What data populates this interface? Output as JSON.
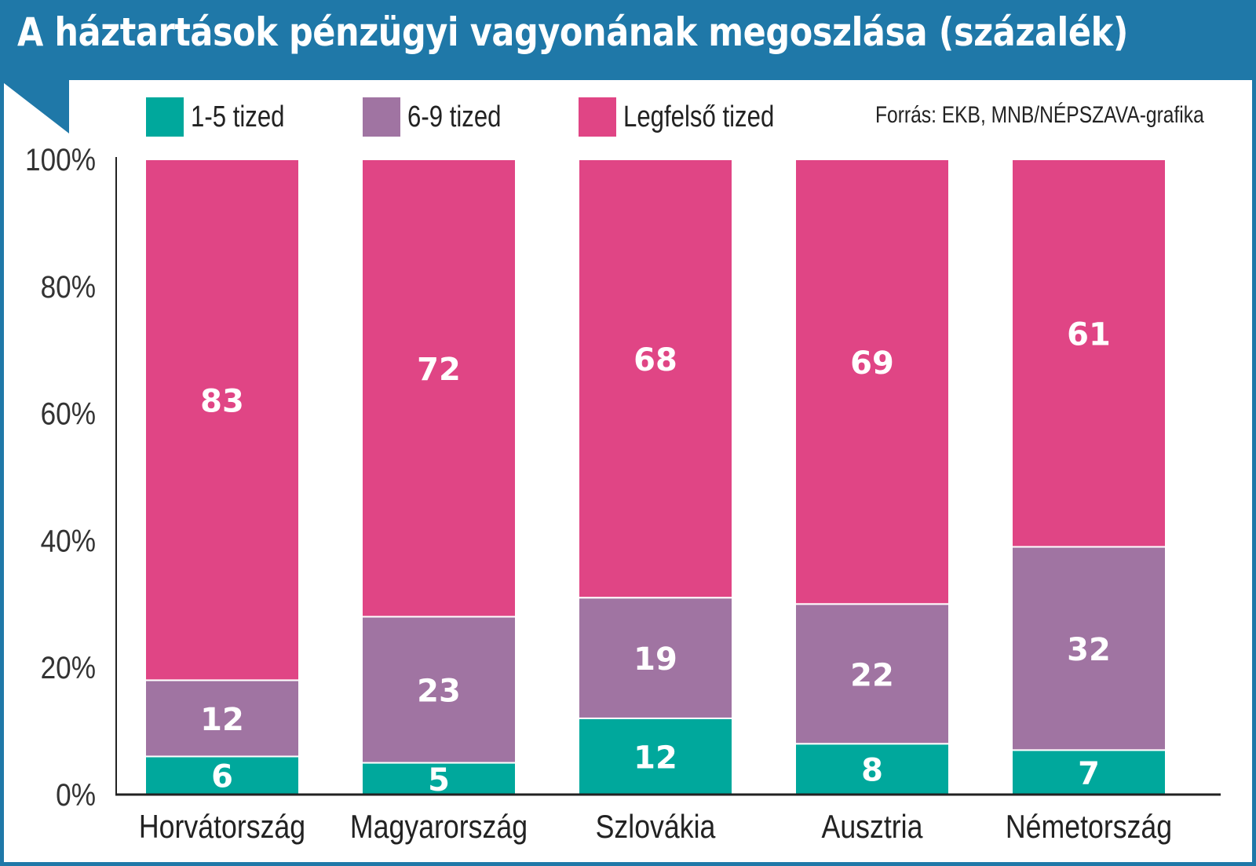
{
  "title": "A háztartások pénzügyi vagyonának megoszlása (százalék)",
  "source": "Forrás: EKB, MNB/NÉPSZAVA-grafika",
  "colors": {
    "header": "#1f78a8",
    "series_1": "#00a89c",
    "series_2": "#a074a2",
    "series_3": "#e04585",
    "label_text": "#ffffff",
    "axis": "#222222"
  },
  "chart_data": {
    "type": "bar",
    "stacked": true,
    "title": "A háztartások pénzügyi vagyonának megoszlása (százalék)",
    "xlabel": "",
    "ylabel": "",
    "ylim": [
      0,
      100
    ],
    "yticks": [
      "0%",
      "20%",
      "40%",
      "60%",
      "80%",
      "100%"
    ],
    "ytick_values": [
      0,
      20,
      40,
      60,
      80,
      100
    ],
    "categories": [
      "Horvátország",
      "Magyarország",
      "Szlovákia",
      "Ausztria",
      "Németország"
    ],
    "series": [
      {
        "name": "1-5 tized",
        "color": "#00a89c",
        "values": [
          6,
          5,
          12,
          8,
          7
        ]
      },
      {
        "name": "6-9 tized",
        "color": "#a074a2",
        "values": [
          12,
          23,
          19,
          22,
          32
        ]
      },
      {
        "name": "Legfelső tized",
        "color": "#e04585",
        "values": [
          83,
          72,
          68,
          69,
          61
        ]
      }
    ],
    "legend_position": "top",
    "grid": false
  }
}
